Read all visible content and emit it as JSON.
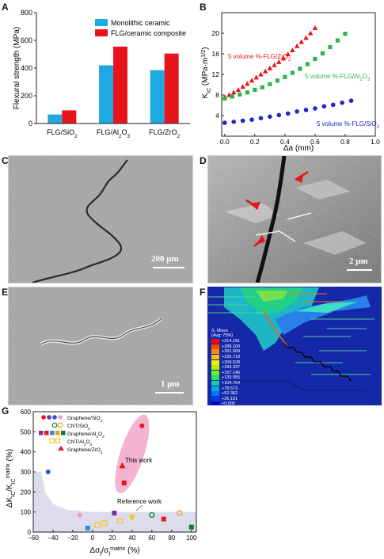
{
  "panels": {
    "A": "A",
    "B": "B",
    "C": "C",
    "D": "D",
    "E": "E",
    "F": "F",
    "G": "G"
  },
  "panel_a": {
    "ylabel": "Flexural strength (MPa)",
    "yticks": [
      "0",
      "200",
      "400",
      "600",
      "800"
    ],
    "legend": [
      "Monolithic ceramic",
      "FLG/ceramic composite"
    ],
    "colors": {
      "monolithic": "#1fa9e1",
      "composite": "#e8141c"
    }
  },
  "panel_b": {
    "ylabel": "K_IC (MPa·m^1/2)",
    "xlabel": "Δa (mm)",
    "xticks": [
      "0.0",
      "0.2",
      "0.4",
      "0.6",
      "0.8",
      "1.0"
    ],
    "yticks": [
      "4",
      "8",
      "12",
      "16",
      "20"
    ],
    "labels": [
      "5 volume %-FLG/ZrO2",
      "5 volume %-FLG/Al2O3",
      "5 volume %-FLG/SiO2"
    ]
  },
  "panel_c": {
    "scale": "200 μm"
  },
  "panel_d": {
    "scale": "2 μm"
  },
  "panel_e": {
    "scale": "1 μm"
  },
  "panel_f": {
    "legend_title": "S, Mises",
    "legend_subtitle": "(Avg: 75%)",
    "legend_values": [
      "314.291",
      "288.100",
      "261.909",
      "235.719",
      "209.528",
      "183.337",
      "157.146",
      "130.955",
      "104.764",
      "78.573",
      "52.382",
      "26.191",
      "0.000"
    ],
    "legend_colors": [
      "#ff0000",
      "#ff4a00",
      "#ff8a00",
      "#ffc200",
      "#f4f000",
      "#b8f000",
      "#70f020",
      "#30e060",
      "#10d0a0",
      "#00b0d8",
      "#0078f0",
      "#0040e8",
      "#0000c8"
    ]
  },
  "panel_g": {
    "ylabel": "ΔK_IC / K_IC^matrix (%)",
    "xlabel": "Δσ_f / σ_f^matrix (%)",
    "xticks": [
      "−60",
      "−40",
      "−20",
      "0",
      "20",
      "40",
      "60",
      "80",
      "100"
    ],
    "yticks": [
      "0",
      "100",
      "200",
      "300",
      "400",
      "500",
      "600"
    ],
    "legend": [
      "Graphene/SiO2",
      "CNT/SiO2",
      "Graphene/Al2O3",
      "CNT/Al2O3",
      "Graphene/ZrO2"
    ],
    "this_work": "This work",
    "reference_work": "Reference work"
  },
  "chart_data": [
    {
      "type": "bar",
      "categories": [
        "FLG/SiO2",
        "FLG/Al2O3",
        "FLG/ZrO2"
      ],
      "series": [
        {
          "name": "Monolithic ceramic",
          "values": [
            65,
            420,
            385
          ]
        },
        {
          "name": "FLG/ceramic composite",
          "values": [
            95,
            555,
            505
          ]
        }
      ],
      "ylabel": "Flexural strength (MPa)",
      "ylim": [
        0,
        800
      ]
    },
    {
      "type": "scatter",
      "xlabel": "Δa (mm)",
      "ylabel": "K_IC (MPa·m^1/2)",
      "xlim": [
        -0.02,
        1.0
      ],
      "ylim": [
        0,
        24
      ],
      "series": [
        {
          "name": "5 volume %-FLG/ZrO2",
          "marker": "triangle",
          "color": "#e8141c",
          "x": [
            0.0,
            0.03,
            0.06,
            0.09,
            0.12,
            0.15,
            0.18,
            0.21,
            0.24,
            0.27,
            0.3,
            0.33,
            0.36,
            0.39,
            0.42,
            0.45,
            0.48,
            0.51,
            0.54,
            0.57,
            0.6
          ],
          "y": [
            7.6,
            8.0,
            8.5,
            9.0,
            9.6,
            10.2,
            10.8,
            11.4,
            12.0,
            12.6,
            13.2,
            13.8,
            14.4,
            15.1,
            15.9,
            16.7,
            17.5,
            18.3,
            19.1,
            20.0,
            21.0
          ]
        },
        {
          "name": "5 volume %-FLG/Al2O3",
          "marker": "square",
          "color": "#2db34a",
          "x": [
            0.0,
            0.05,
            0.1,
            0.15,
            0.2,
            0.25,
            0.3,
            0.35,
            0.4,
            0.45,
            0.5,
            0.55,
            0.6,
            0.65,
            0.7,
            0.75,
            0.8
          ],
          "y": [
            7.3,
            7.7,
            8.1,
            8.5,
            9.0,
            9.5,
            10.1,
            10.8,
            11.5,
            12.3,
            13.1,
            14.0,
            15.0,
            16.1,
            17.3,
            18.6,
            19.9
          ]
        },
        {
          "name": "5 volume %-FLG/SiO2",
          "marker": "circle",
          "color": "#1f27c8",
          "x": [
            0.0,
            0.06,
            0.12,
            0.18,
            0.24,
            0.3,
            0.36,
            0.42,
            0.48,
            0.54,
            0.6,
            0.66,
            0.72,
            0.78,
            0.84
          ],
          "y": [
            2.6,
            2.8,
            3.0,
            3.2,
            3.5,
            3.8,
            4.1,
            4.4,
            4.8,
            5.1,
            5.4,
            5.8,
            6.1,
            6.5,
            6.9
          ]
        }
      ]
    },
    {
      "type": "scatter",
      "xlabel": "Δσ_f / σ_f^matrix (%)",
      "ylabel": "ΔK_IC / K_IC^matrix (%)",
      "xlim": [
        -60,
        105
      ],
      "ylim": [
        0,
        600
      ],
      "series": [
        {
          "name": "Graphene/SiO2",
          "points": [
            [
              -45,
              300
            ],
            [
              -13,
              85
            ],
            [
              50,
              530
            ]
          ]
        },
        {
          "name": "CNT/SiO2",
          "points": [
            [
              60,
              85
            ],
            [
              88,
              95
            ]
          ]
        },
        {
          "name": "Graphene/Al2O3",
          "points": [
            [
              22,
              95
            ],
            [
              -5,
              20
            ],
            [
              32,
              245
            ],
            [
              40,
              75
            ],
            [
              72,
              65
            ],
            [
              100,
              25
            ]
          ]
        },
        {
          "name": "CNT/Al2O3",
          "points": [
            [
              5,
              35
            ],
            [
              12,
              45
            ],
            [
              28,
              55
            ]
          ]
        },
        {
          "name": "Graphene/ZrO2",
          "points": [
            [
              30,
              330
            ]
          ]
        }
      ]
    }
  ]
}
